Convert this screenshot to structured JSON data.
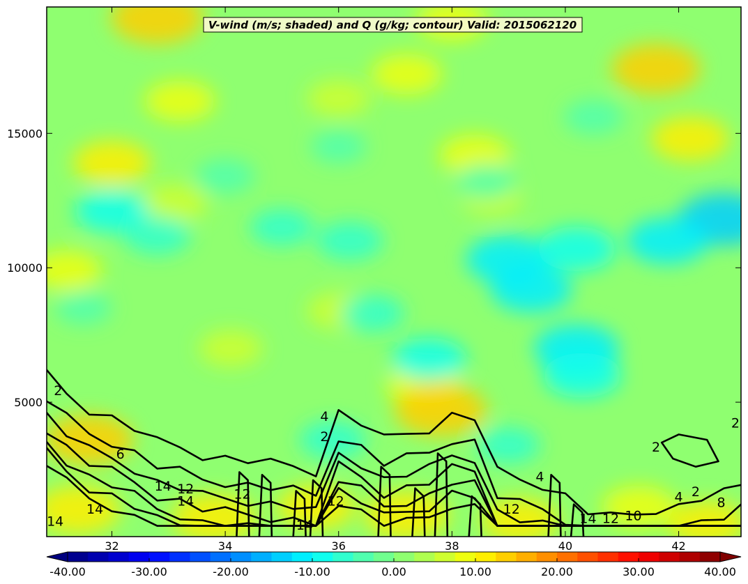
{
  "chart_data": {
    "type": "heatmap",
    "title": "V-wind (m/s; shaded) and Q (g/kg; contour) Valid: 2015062120",
    "xlabel": "",
    "ylabel": "",
    "xlim": [
      30.85,
      43.1
    ],
    "ylim": [
      0,
      19700
    ],
    "x_ticks": [
      "32",
      "34",
      "36",
      "38",
      "40",
      "42"
    ],
    "x_tick_values": [
      32,
      34,
      36,
      38,
      40,
      42
    ],
    "y_ticks": [
      "5000",
      "10000",
      "15000"
    ],
    "y_tick_values": [
      5000,
      10000,
      15000
    ],
    "colorbar": {
      "ticks": [
        "-40.00",
        "-30.00",
        "-20.00",
        "-10.00",
        "0.00",
        "10.00",
        "20.00",
        "30.00",
        "40.00"
      ],
      "tick_values": [
        -40,
        -30,
        -20,
        -10,
        0,
        10,
        20,
        30,
        40
      ],
      "range": [
        -40,
        40
      ],
      "extend": "both",
      "colormap": "jet"
    },
    "shaded_field": {
      "name": "V-wind (m/s)",
      "background_value": 0,
      "features": [
        {
          "x": 32.8,
          "y": 19300,
          "v": 14
        },
        {
          "x": 38.0,
          "y": 19200,
          "v": 8
        },
        {
          "x": 41.6,
          "y": 17400,
          "v": 13
        },
        {
          "x": 37.2,
          "y": 17200,
          "v": 8
        },
        {
          "x": 33.2,
          "y": 16200,
          "v": 8
        },
        {
          "x": 36.0,
          "y": 16300,
          "v": 6
        },
        {
          "x": 42.2,
          "y": 14800,
          "v": 10
        },
        {
          "x": 32.0,
          "y": 13900,
          "v": 10
        },
        {
          "x": 38.4,
          "y": 14200,
          "v": 8
        },
        {
          "x": 33.1,
          "y": 12400,
          "v": 7
        },
        {
          "x": 31.2,
          "y": 9900,
          "v": 8
        },
        {
          "x": 36.0,
          "y": 8400,
          "v": 6
        },
        {
          "x": 37.5,
          "y": 5600,
          "v": 9
        },
        {
          "x": 37.8,
          "y": 4700,
          "v": 14
        },
        {
          "x": 34.1,
          "y": 7000,
          "v": 6
        },
        {
          "x": 38.7,
          "y": 12600,
          "v": 5
        },
        {
          "x": 31.6,
          "y": 3600,
          "v": 13
        },
        {
          "x": 31.4,
          "y": 1000,
          "v": 12
        },
        {
          "x": 33.8,
          "y": 700,
          "v": 12
        },
        {
          "x": 35.6,
          "y": 1100,
          "v": 10
        },
        {
          "x": 37.2,
          "y": 800,
          "v": 12
        },
        {
          "x": 39.2,
          "y": 600,
          "v": 10
        },
        {
          "x": 41.3,
          "y": 1100,
          "v": 9
        },
        {
          "x": 42.5,
          "y": 500,
          "v": 10
        },
        {
          "x": 39.0,
          "y": 10300,
          "v": -12
        },
        {
          "x": 40.2,
          "y": 10700,
          "v": -10
        },
        {
          "x": 39.4,
          "y": 9200,
          "v": -11
        },
        {
          "x": 42.8,
          "y": 11800,
          "v": -14
        },
        {
          "x": 41.8,
          "y": 11000,
          "v": -11
        },
        {
          "x": 32.0,
          "y": 12100,
          "v": -9
        },
        {
          "x": 32.8,
          "y": 11200,
          "v": -7
        },
        {
          "x": 40.2,
          "y": 7000,
          "v": -12
        },
        {
          "x": 40.3,
          "y": 6000,
          "v": -10
        },
        {
          "x": 36.2,
          "y": 11000,
          "v": -7
        },
        {
          "x": 38.6,
          "y": 13200,
          "v": -5
        },
        {
          "x": 34.0,
          "y": 13400,
          "v": -5
        },
        {
          "x": 35.0,
          "y": 11500,
          "v": -6
        },
        {
          "x": 36.6,
          "y": 8300,
          "v": -6
        },
        {
          "x": 37.6,
          "y": 6600,
          "v": -9
        },
        {
          "x": 35.9,
          "y": 3600,
          "v": -7
        },
        {
          "x": 39.0,
          "y": 3400,
          "v": -6
        },
        {
          "x": 31.5,
          "y": 8500,
          "v": -4
        },
        {
          "x": 40.5,
          "y": 15600,
          "v": -5
        },
        {
          "x": 36.0,
          "y": 14500,
          "v": -4
        }
      ]
    },
    "contour_field": {
      "name": "Q (g/kg)",
      "levels_labeled": [
        "2",
        "4",
        "6",
        "8",
        "10",
        "12",
        "14"
      ]
    },
    "contour_labels": [
      {
        "text": "2",
        "x": 31.05,
        "y": 5400
      },
      {
        "text": "4",
        "x": 35.75,
        "y": 4450
      },
      {
        "text": "2",
        "x": 35.75,
        "y": 3700
      },
      {
        "text": "6",
        "x": 32.15,
        "y": 3050
      },
      {
        "text": "2",
        "x": 41.6,
        "y": 3300
      },
      {
        "text": "2",
        "x": 43.0,
        "y": 4200
      },
      {
        "text": "4",
        "x": 39.55,
        "y": 2200
      },
      {
        "text": "14",
        "x": 32.9,
        "y": 1850
      },
      {
        "text": "12",
        "x": 33.3,
        "y": 1750
      },
      {
        "text": "14",
        "x": 33.3,
        "y": 1300
      },
      {
        "text": "14",
        "x": 31.7,
        "y": 1000
      },
      {
        "text": "14",
        "x": 31.0,
        "y": 550
      },
      {
        "text": "12",
        "x": 34.3,
        "y": 1550
      },
      {
        "text": "14",
        "x": 35.4,
        "y": 400
      },
      {
        "text": "12",
        "x": 35.95,
        "y": 1300
      },
      {
        "text": "12",
        "x": 39.05,
        "y": 1000
      },
      {
        "text": "14",
        "x": 40.4,
        "y": 650
      },
      {
        "text": "12",
        "x": 40.8,
        "y": 650
      },
      {
        "text": "10",
        "x": 41.2,
        "y": 750
      },
      {
        "text": "4",
        "x": 42.0,
        "y": 1450
      },
      {
        "text": "2",
        "x": 42.3,
        "y": 1650
      },
      {
        "text": "8",
        "x": 42.75,
        "y": 1250
      }
    ]
  }
}
